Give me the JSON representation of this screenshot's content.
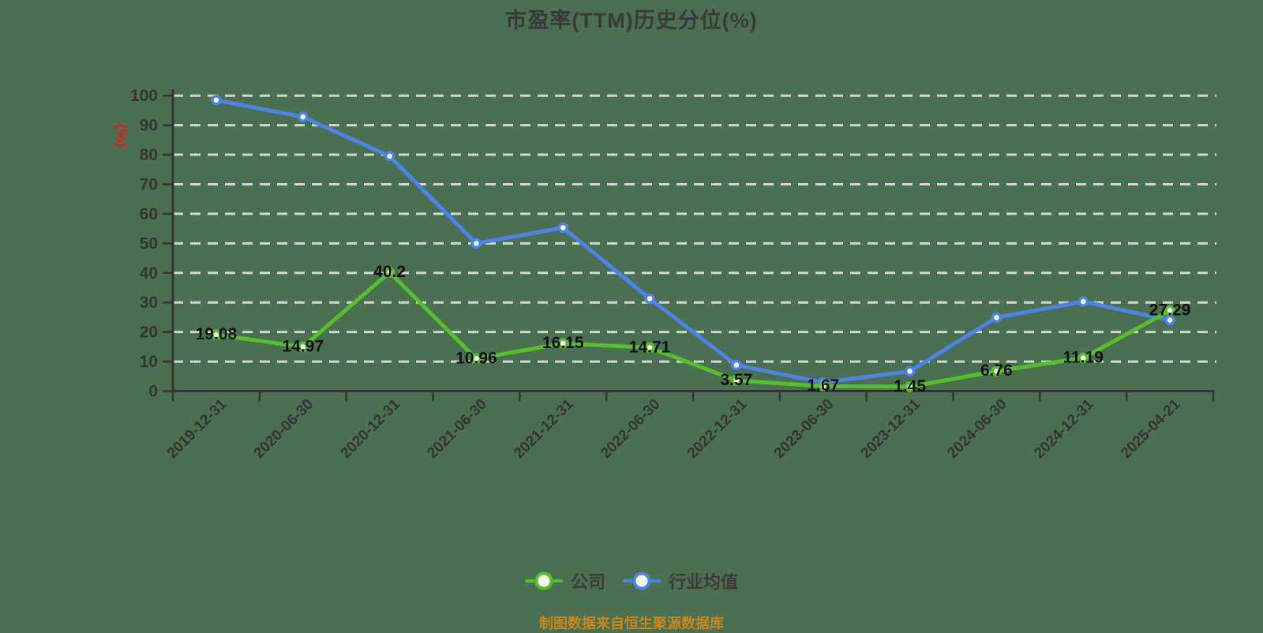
{
  "header": {
    "title": "市盈率(TTM)历史分位(%)"
  },
  "chart_data": {
    "type": "line",
    "title": "市盈率(TTM)历史分位(%)",
    "ylabel": "(%)",
    "xlabel": "",
    "ylim": [
      0,
      100
    ],
    "y_tick_step": 10,
    "grid": "horizontal-dashed",
    "legend_position": "bottom",
    "categories": [
      "2019-12-31",
      "2020-06-30",
      "2020-12-31",
      "2021-06-30",
      "2021-12-31",
      "2022-06-30",
      "2022-12-31",
      "2023-06-30",
      "2023-12-31",
      "2024-06-30",
      "2024-12-31",
      "2025-04-21"
    ],
    "series": [
      {
        "name": "公司",
        "color": "#56c02c",
        "values": [
          19.08,
          14.97,
          40.2,
          10.96,
          16.15,
          14.71,
          3.57,
          1.67,
          1.45,
          6.76,
          11.19,
          27.29
        ],
        "point_labels": [
          "19.08",
          "14.97",
          "40.2",
          "10.96",
          "16.15",
          "14.71",
          "3.57",
          "1.67",
          "1.45",
          "6.76",
          "11.19",
          "27.29"
        ],
        "labels_shown": true
      },
      {
        "name": "行业均值",
        "color": "#4d82e6",
        "values": [
          98.5,
          92.8,
          79.5,
          50.0,
          55.3,
          31.3,
          8.8,
          2.9,
          6.7,
          24.9,
          30.3,
          24.0
        ],
        "labels_shown": false,
        "estimated": true
      }
    ]
  },
  "legend": {
    "items": [
      {
        "label": "公司",
        "color": "#56c02c"
      },
      {
        "label": "行业均值",
        "color": "#4d82e6"
      }
    ]
  },
  "footer": {
    "source_note": "制图数据来自恒生聚源数据库"
  },
  "colors": {
    "background": "#4a7051",
    "axis": "#343434",
    "gridline": "#d3d6d2",
    "tick_label": "#343434",
    "title": "#3a3a3a",
    "y_unit": "#e02020",
    "data_label": "#111111",
    "legend_text": "#3c3c3c",
    "source_note": "#c8871c"
  }
}
